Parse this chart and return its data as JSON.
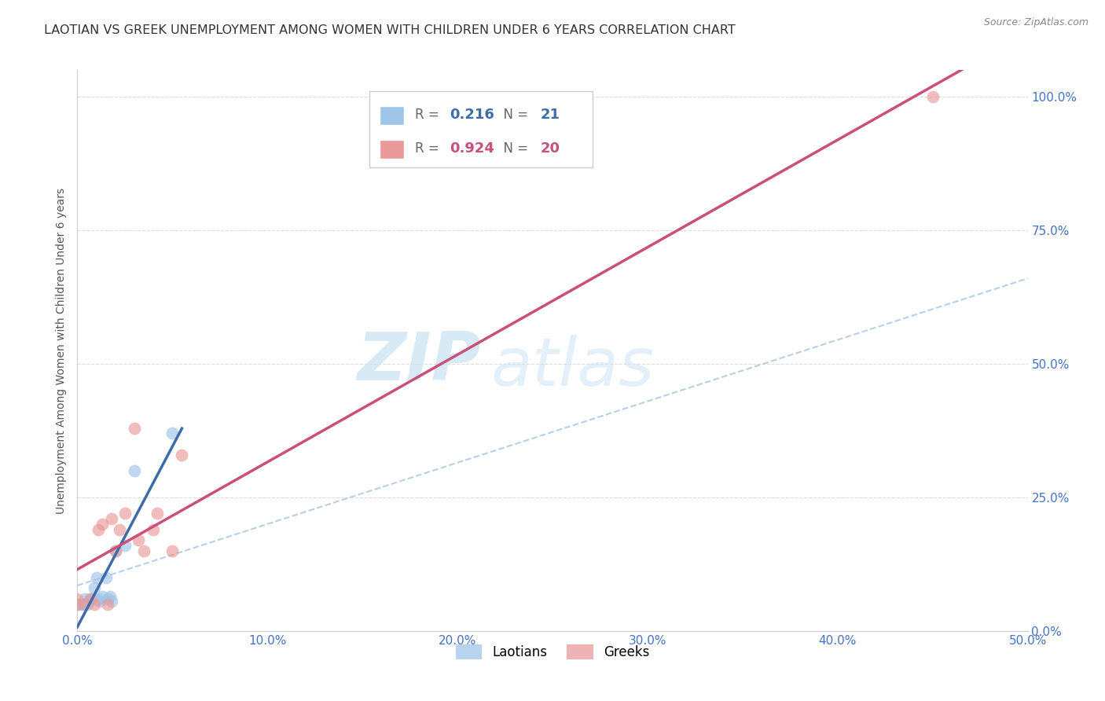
{
  "title": "LAOTIAN VS GREEK UNEMPLOYMENT AMONG WOMEN WITH CHILDREN UNDER 6 YEARS CORRELATION CHART",
  "source": "Source: ZipAtlas.com",
  "ylabel": "Unemployment Among Women with Children Under 6 years",
  "watermark_zip": "ZIP",
  "watermark_atlas": "atlas",
  "xlim": [
    0.0,
    0.5
  ],
  "ylim": [
    0.0,
    1.05
  ],
  "xticks": [
    0.0,
    0.1,
    0.2,
    0.3,
    0.4,
    0.5
  ],
  "yticks_right": [
    0.0,
    0.25,
    0.5,
    0.75,
    1.0
  ],
  "laotian_x": [
    0.0,
    0.002,
    0.003,
    0.004,
    0.005,
    0.006,
    0.007,
    0.008,
    0.009,
    0.01,
    0.011,
    0.012,
    0.013,
    0.015,
    0.016,
    0.017,
    0.018,
    0.02,
    0.025,
    0.03,
    0.05
  ],
  "laotian_y": [
    0.05,
    0.05,
    0.05,
    0.06,
    0.05,
    0.055,
    0.06,
    0.06,
    0.08,
    0.1,
    0.06,
    0.055,
    0.065,
    0.1,
    0.06,
    0.065,
    0.055,
    0.15,
    0.16,
    0.3,
    0.37
  ],
  "greek_x": [
    0.0,
    0.0,
    0.004,
    0.007,
    0.009,
    0.011,
    0.013,
    0.016,
    0.018,
    0.02,
    0.022,
    0.025,
    0.03,
    0.032,
    0.035,
    0.04,
    0.042,
    0.05,
    0.055,
    0.45
  ],
  "greek_y": [
    0.05,
    0.06,
    0.05,
    0.06,
    0.05,
    0.19,
    0.2,
    0.05,
    0.21,
    0.15,
    0.19,
    0.22,
    0.38,
    0.17,
    0.15,
    0.19,
    0.22,
    0.15,
    0.33,
    1.0
  ],
  "laotian_R": 0.216,
  "laotian_N": 21,
  "greek_R": 0.924,
  "greek_N": 20,
  "laotian_color": "#9fc5e8",
  "greek_color": "#ea9999",
  "laotian_line_color": "#3d6da8",
  "greek_line_color": "#c9507a",
  "dashed_line_color": "#a8c4e0",
  "background_color": "#ffffff",
  "grid_color": "#dddddd",
  "axis_color": "#4472c4",
  "title_fontsize": 11.5
}
